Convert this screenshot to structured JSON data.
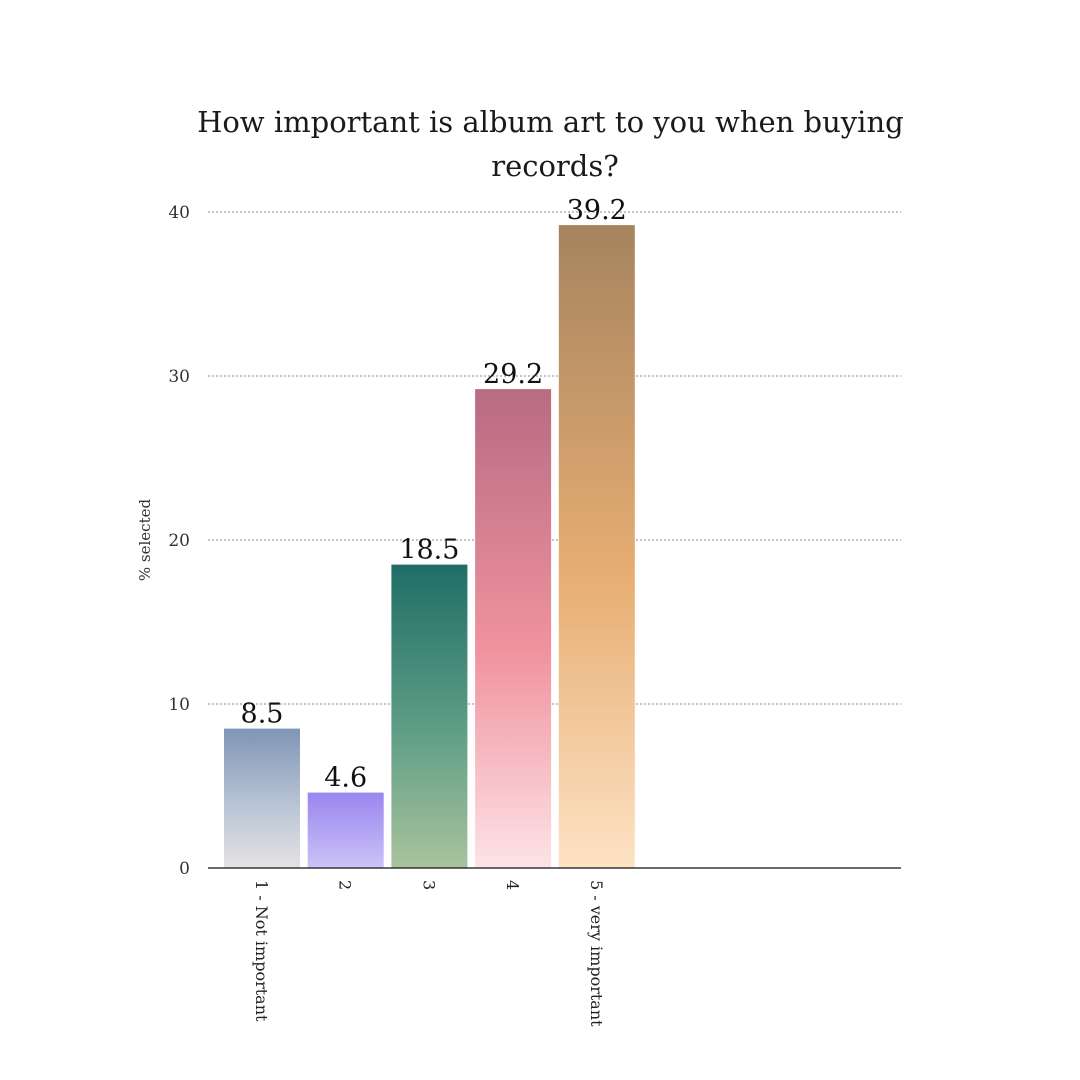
{
  "chart_data": {
    "type": "bar",
    "title": "How important is album art to you when buying records?",
    "title_lines": [
      "How important is album art to you when buying",
      "records?"
    ],
    "xlabel": "",
    "ylabel": "% selected",
    "categories": [
      "1 - Not important",
      "2",
      "3",
      "4",
      "5 - very important"
    ],
    "values": [
      8.5,
      4.6,
      18.5,
      29.2,
      39.2
    ],
    "value_labels": [
      "8.5",
      "4.6",
      "18.5",
      "29.2",
      "39.2"
    ],
    "ylim": [
      0,
      40
    ],
    "yticks": [
      0,
      10,
      20,
      30,
      40
    ],
    "ytick_labels": [
      "0",
      "10",
      "20",
      "30",
      "40"
    ],
    "grid": "horizontal-dotted",
    "legend": "none",
    "bar_colors": [
      {
        "top": "#7f95b5",
        "mid": "#b9c4d6",
        "bottom": "#e6e2e2"
      },
      {
        "top": "#9a86ee",
        "mid": "#b4a6f4",
        "bottom": "#cdc4f7"
      },
      {
        "top": "#1f6e66",
        "mid": "#5f9e86",
        "bottom": "#a9c39c"
      },
      {
        "top": "#b86b82",
        "mid": "#f0939f",
        "bottom": "#fde3e6"
      },
      {
        "top": "#a6845f",
        "mid": "#e7ae73",
        "bottom": "#fde2c4"
      }
    ]
  }
}
